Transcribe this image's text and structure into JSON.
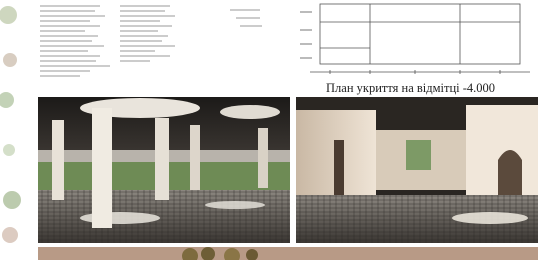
{
  "caption": "План укриття на відмітці -4.000"
}
